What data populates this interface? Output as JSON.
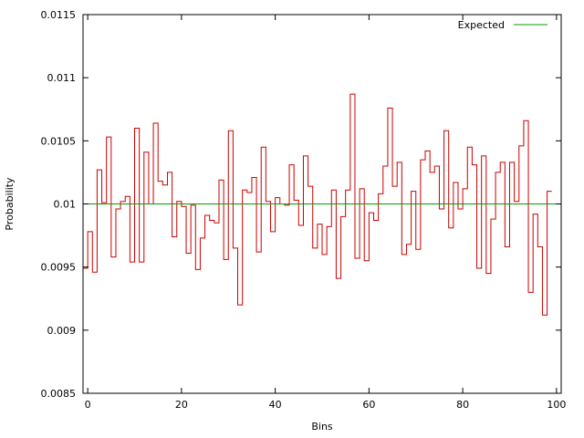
{
  "chart_data": {
    "type": "line",
    "xlabel": "Bins",
    "ylabel": "Probability",
    "xlim": [
      -1,
      101
    ],
    "ylim": [
      0.0085,
      0.0115
    ],
    "x_ticks": [
      0,
      20,
      40,
      60,
      80,
      100
    ],
    "x_tick_labels": [
      "0",
      "20",
      "40",
      "60",
      "80",
      "100"
    ],
    "y_ticks": [
      0.0085,
      0.009,
      0.0095,
      0.01,
      0.0105,
      0.011,
      0.0115
    ],
    "y_tick_labels": [
      "0.0085",
      "0.009",
      "0.0095",
      "0.01",
      "0.0105",
      "0.011",
      "0.0115"
    ],
    "grid": false,
    "legend_position": "top-right",
    "series": [
      {
        "step": true,
        "color": "#cc0000",
        "x": [
          -1,
          0,
          1,
          2,
          3,
          4,
          5,
          6,
          7,
          8,
          9,
          10,
          11,
          12,
          13,
          14,
          15,
          16,
          17,
          18,
          19,
          20,
          21,
          22,
          23,
          24,
          25,
          26,
          27,
          28,
          29,
          30,
          31,
          32,
          33,
          34,
          35,
          36,
          37,
          38,
          39,
          40,
          41,
          42,
          43,
          44,
          45,
          46,
          47,
          48,
          49,
          50,
          51,
          52,
          53,
          54,
          55,
          56,
          57,
          58,
          59,
          60,
          61,
          62,
          63,
          64,
          65,
          66,
          67,
          68,
          69,
          70,
          71,
          72,
          73,
          74,
          75,
          76,
          77,
          78,
          79,
          80,
          81,
          82,
          83,
          84,
          85,
          86,
          87,
          88,
          89,
          90,
          91,
          92,
          93,
          94,
          95,
          96,
          97,
          98
        ],
        "values": [
          0.00949,
          0.00978,
          0.00946,
          0.01027,
          0.01001,
          0.01053,
          0.00958,
          0.00996,
          0.01002,
          0.01006,
          0.00954,
          0.0106,
          0.00954,
          0.01041,
          0.01,
          0.01064,
          0.01018,
          0.01015,
          0.01025,
          0.00974,
          0.01002,
          0.00998,
          0.00961,
          0.00999,
          0.00948,
          0.00973,
          0.00991,
          0.00987,
          0.00985,
          0.01019,
          0.00956,
          0.01058,
          0.00965,
          0.0092,
          0.01011,
          0.01009,
          0.01021,
          0.00962,
          0.01045,
          0.01002,
          0.00978,
          0.01005,
          0.01,
          0.00999,
          0.01031,
          0.01003,
          0.00983,
          0.01038,
          0.01014,
          0.00965,
          0.00984,
          0.0096,
          0.00982,
          0.01011,
          0.00941,
          0.0099,
          0.01011,
          0.01087,
          0.00957,
          0.01012,
          0.00955,
          0.00993,
          0.00987,
          0.01008,
          0.0103,
          0.01076,
          0.01014,
          0.01033,
          0.0096,
          0.00968,
          0.0101,
          0.00964,
          0.01035,
          0.01042,
          0.01025,
          0.0103,
          0.00996,
          0.01058,
          0.00981,
          0.01017,
          0.00996,
          0.01012,
          0.01045,
          0.01031,
          0.00949,
          0.01038,
          0.00945,
          0.00988,
          0.01025,
          0.01033,
          0.00966,
          0.01033,
          0.01002,
          0.01046,
          0.01066,
          0.0093,
          0.00992,
          0.00966,
          0.00912,
          0.0101
        ]
      },
      {
        "name": "Expected",
        "color": "#00a000",
        "x": [
          -1,
          101
        ],
        "values": [
          0.01,
          0.01
        ]
      }
    ]
  }
}
